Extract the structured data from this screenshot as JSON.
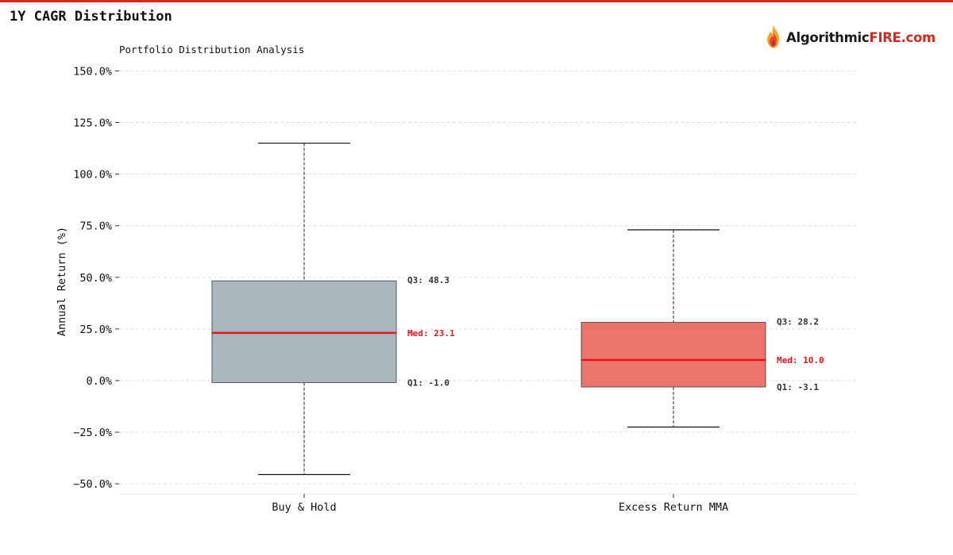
{
  "page": {
    "title": "1Y CAGR Distribution",
    "accent_color": "#d42a1b"
  },
  "brand": {
    "name_part1": "Algorithmic",
    "name_part2": "FIRE.com",
    "icon": "flame-icon"
  },
  "chart_data": {
    "type": "box",
    "title": "Portfolio Distribution Analysis",
    "ylabel": "Annual Return (%)",
    "xlabel": "",
    "ylim": [
      -55,
      150
    ],
    "yticks": [
      -50,
      -25,
      0,
      25,
      50,
      75,
      100,
      125,
      150
    ],
    "ytick_labels": [
      "−50.0%",
      "−25.0%",
      "0.0%",
      "25.0%",
      "50.0%",
      "75.0%",
      "100.0%",
      "125.0%",
      "150.0%"
    ],
    "grid": true,
    "categories": [
      "Buy & Hold",
      "Excess Return MMA"
    ],
    "series": [
      {
        "category": "Buy & Hold",
        "whisker_low": -45.5,
        "q1": -1.0,
        "median": 23.1,
        "q3": 48.3,
        "whisker_high": 115.0,
        "color": "#9aabb4",
        "q1_label": "Q1: -1.0",
        "median_label": "Med: 23.1",
        "q3_label": "Q3: 48.3"
      },
      {
        "category": "Excess Return MMA",
        "whisker_low": -22.5,
        "q1": -3.1,
        "median": 10.0,
        "q3": 28.2,
        "whisker_high": 73.0,
        "color": "#ea5c52",
        "q1_label": "Q1: -3.1",
        "median_label": "Med: 10.0",
        "q3_label": "Q3: 28.2"
      }
    ],
    "median_color": "#e8141c"
  }
}
